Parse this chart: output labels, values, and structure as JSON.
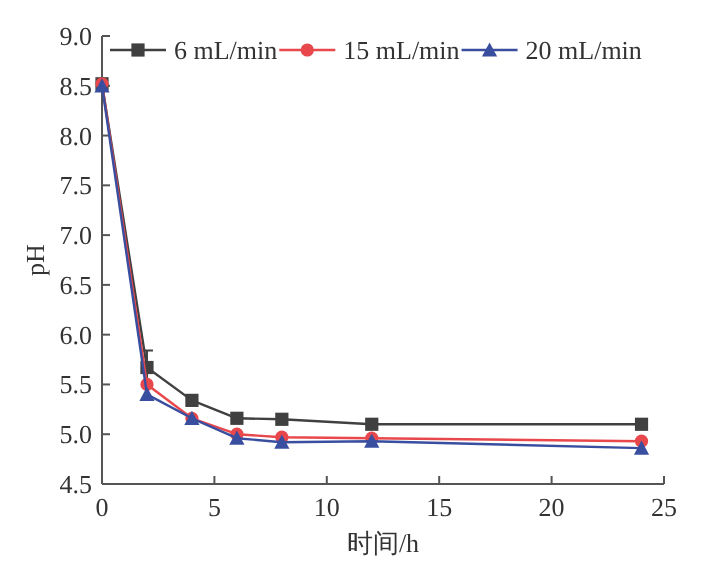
{
  "chart_data": {
    "type": "line",
    "xlabel": "时间/h",
    "ylabel": "pH",
    "x": [
      0,
      2,
      4,
      6,
      8,
      12,
      24
    ],
    "series": [
      {
        "name": "6 mL/min",
        "color": "#404040",
        "marker": "square",
        "values": [
          8.52,
          5.67,
          5.34,
          5.16,
          5.15,
          5.1,
          5.1
        ],
        "errors": [
          null,
          0.17,
          null,
          null,
          null,
          null,
          null
        ]
      },
      {
        "name": "15 mL/min",
        "color": "#e8474c",
        "marker": "circle",
        "values": [
          8.52,
          5.5,
          5.16,
          5.0,
          4.97,
          4.96,
          4.93
        ]
      },
      {
        "name": "20 mL/min",
        "color": "#3a4ea0",
        "marker": "triangle",
        "values": [
          8.5,
          5.4,
          5.16,
          4.96,
          4.92,
          4.93,
          4.86
        ]
      }
    ],
    "xlim": [
      0,
      25
    ],
    "xticks": [
      0,
      5,
      10,
      15,
      20,
      25
    ],
    "ylim": [
      4.5,
      9.0
    ],
    "yticks": [
      {
        "value": 4.5,
        "label": "4.5"
      },
      {
        "value": 5.0,
        "label": "5.0"
      },
      {
        "value": 5.5,
        "label": "5.5"
      },
      {
        "value": 6.0,
        "label": "6.0"
      },
      {
        "value": 6.5,
        "label": "6.5"
      },
      {
        "value": 7.0,
        "label": "7.0"
      },
      {
        "value": 7.5,
        "label": "7.5"
      },
      {
        "value": 8.0,
        "label": "8.0"
      },
      {
        "value": 8.5,
        "label": "8.5"
      },
      {
        "value": 9.0,
        "label": "9.0"
      }
    ],
    "grid": false,
    "legend": "top"
  }
}
